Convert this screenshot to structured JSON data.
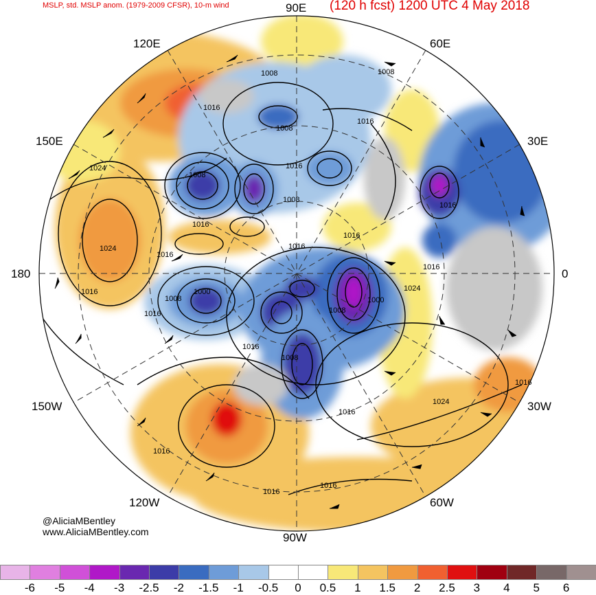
{
  "header": {
    "left_title": "MSLP, std. MSLP anom. (1979-2009 CFSR), 10-m wind",
    "right_title": "(120 h fcst) 1200 UTC 4 May 2018"
  },
  "longitude_labels": {
    "lon_90e": "90E",
    "lon_120e": "120E",
    "lon_60e": "60E",
    "lon_150e": "150E",
    "lon_30e": "30E",
    "lon_180": "180",
    "lon_0": "0",
    "lon_150w": "150W",
    "lon_30w": "30W",
    "lon_120w": "120W",
    "lon_60w": "60W",
    "lon_90w": "90W"
  },
  "credits": {
    "handle": "@AliciaMBentley",
    "site": "www.AliciaMBentley.com"
  },
  "colors": {
    "ocean_background": "#ffffff",
    "land_outline": "#555555",
    "contour": "#000000",
    "title_red": "#e00000"
  },
  "isobar_labels": [
    "1008",
    "1016",
    "1008",
    "1008",
    "1016",
    "1008",
    "1008",
    "1016",
    "1024",
    "1016",
    "1024",
    "1016",
    "1008",
    "1016",
    "1000",
    "1016",
    "1008",
    "1016",
    "1016",
    "1000",
    "1008",
    "1016",
    "1024",
    "1016",
    "1024",
    "1016",
    "1016",
    "1016",
    "1016",
    "1016",
    "1016"
  ],
  "colorbar": {
    "ticks": [
      "-6",
      "-5",
      "-4",
      "-3",
      "-2.5",
      "-2",
      "-1.5",
      "-1",
      "-0.5",
      "0",
      "0.5",
      "1",
      "1.5",
      "2",
      "2.5",
      "3",
      "4",
      "5",
      "6"
    ],
    "colors": [
      "#e8b4e8",
      "#e07fe0",
      "#d050d8",
      "#b018c8",
      "#6a28b0",
      "#3c3ca8",
      "#3a6cc0",
      "#6e9cd8",
      "#a8c8e8",
      "#ffffff",
      "#ffffff",
      "#f8e878",
      "#f4c460",
      "#f09a40",
      "#f06030",
      "#e01010",
      "#a00010",
      "#702828",
      "#786868",
      "#a09090"
    ]
  }
}
